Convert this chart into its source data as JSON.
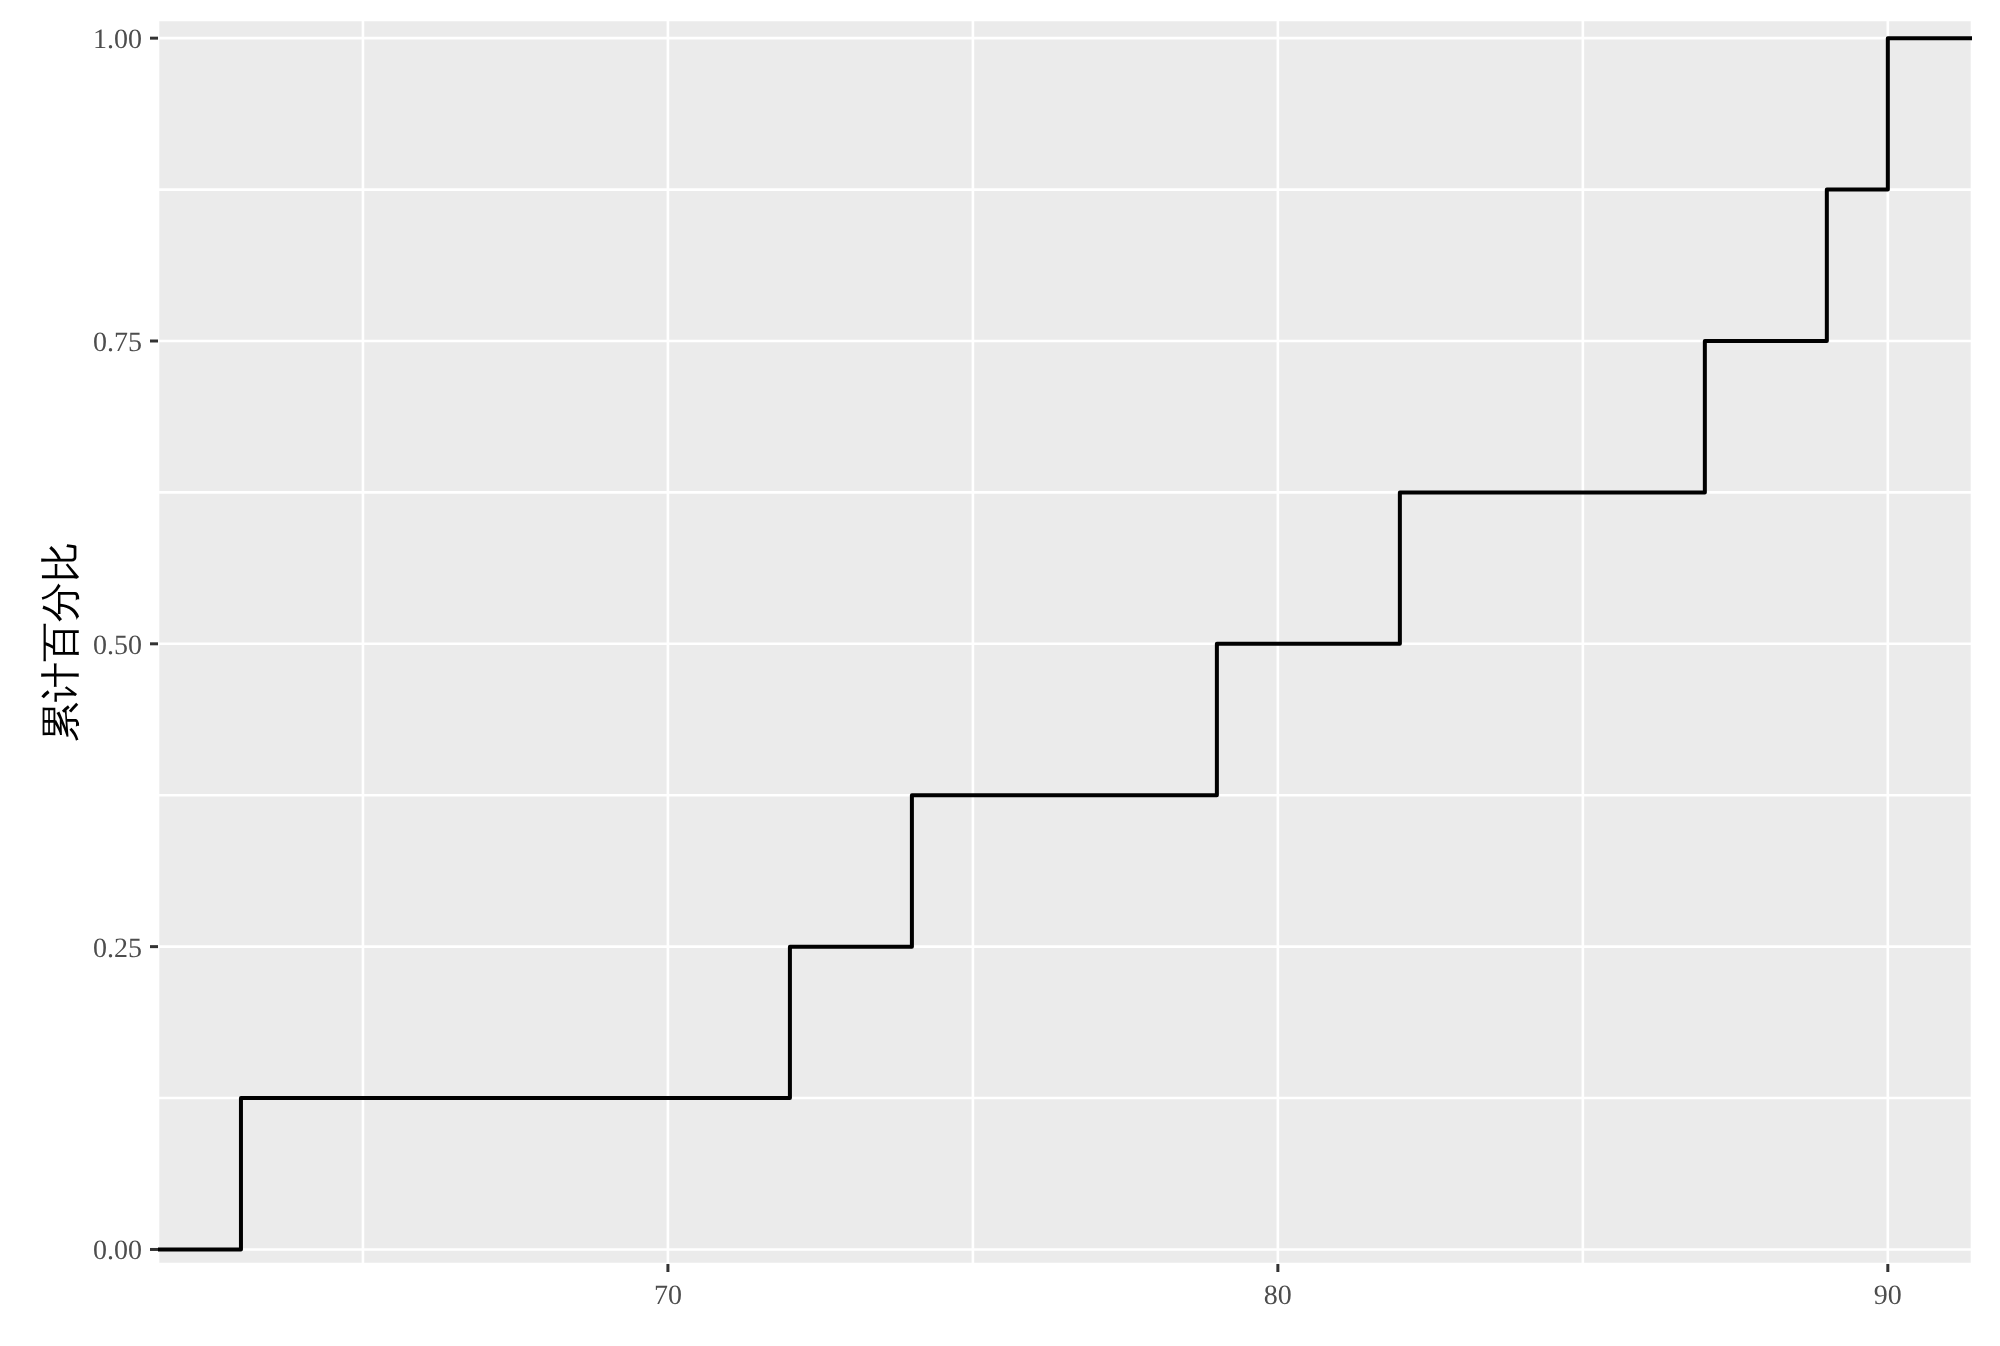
{
  "chart_data": {
    "type": "step",
    "ylabel": "累计百分比",
    "x": [
      61.64,
      63,
      72,
      74,
      79,
      82,
      87,
      89,
      90,
      91.38
    ],
    "series": [
      {
        "color": "#000000",
        "values": [
          0,
          0.125,
          0.25,
          0.375,
          0.5,
          0.625,
          0.75,
          0.875,
          1,
          1
        ]
      }
    ],
    "xlim": [
      61.64,
      91.38
    ],
    "ylim": [
      -0.012,
      1.015
    ],
    "xticks": [
      {
        "value": 65,
        "label": null
      },
      70,
      {
        "value": 75,
        "label": null
      },
      80,
      {
        "value": 85,
        "label": null
      },
      90
    ],
    "yticks": [
      {
        "value": 0,
        "label": "0.00"
      },
      {
        "value": 0.125,
        "label": null
      },
      {
        "value": 0.25,
        "label": "0.25"
      },
      {
        "value": 0.375,
        "label": null
      },
      {
        "value": 0.5,
        "label": "0.50"
      },
      {
        "value": 0.625,
        "label": null
      },
      {
        "value": 0.75,
        "label": "0.75"
      },
      {
        "value": 0.875,
        "label": null
      },
      {
        "value": 1,
        "label": "1.00"
      }
    ],
    "grid": true,
    "legend": false
  }
}
